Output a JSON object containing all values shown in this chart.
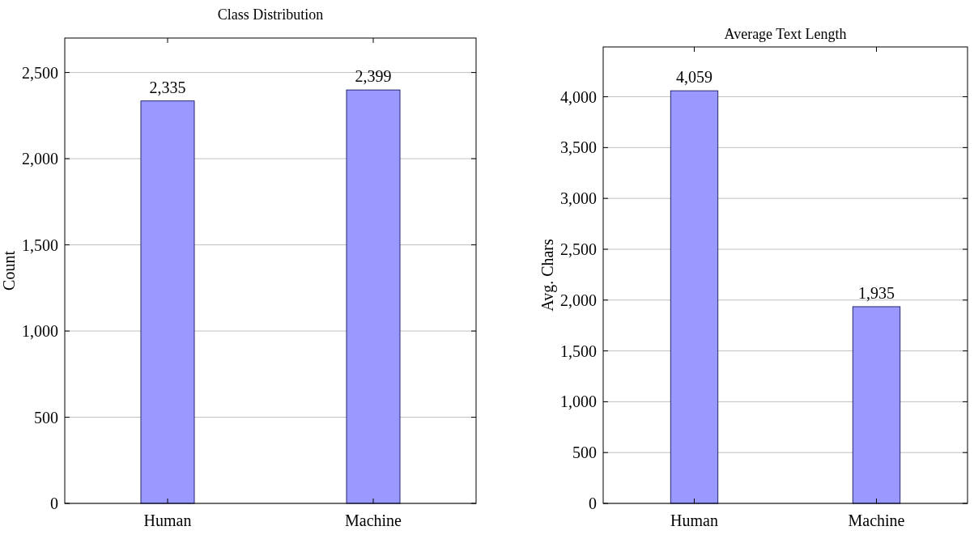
{
  "chart_data": [
    {
      "type": "bar",
      "title": "Class Distribution",
      "ylabel": "Count",
      "categories": [
        "Human",
        "Machine"
      ],
      "values": [
        2335,
        2399
      ],
      "value_labels": [
        "2,335",
        "2,399"
      ],
      "color": "#9999ff",
      "ylim": [
        0,
        2700
      ],
      "yticks": [
        {
          "value": 0,
          "label": "0"
        },
        {
          "value": 500,
          "label": "500"
        },
        {
          "value": 1000,
          "label": "1,000"
        },
        {
          "value": 1500,
          "label": "1,500"
        },
        {
          "value": 2000,
          "label": "2,000"
        },
        {
          "value": 2500,
          "label": "2,500"
        }
      ],
      "grid": "y"
    },
    {
      "type": "bar",
      "title": "Average Text Length",
      "ylabel": "Avg. Chars",
      "categories": [
        "Human",
        "Machine"
      ],
      "values": [
        4059,
        1935
      ],
      "value_labels": [
        "4,059",
        "1,935"
      ],
      "color": "#9999ff",
      "ylim": [
        0,
        4490
      ],
      "yticks": [
        {
          "value": 0,
          "label": "0"
        },
        {
          "value": 500,
          "label": "500"
        },
        {
          "value": 1000,
          "label": "1,000"
        },
        {
          "value": 1500,
          "label": "1,500"
        },
        {
          "value": 2000,
          "label": "2,000"
        },
        {
          "value": 2500,
          "label": "2,500"
        },
        {
          "value": 3000,
          "label": "3,000"
        },
        {
          "value": 3500,
          "label": "3,500"
        },
        {
          "value": 4000,
          "label": "4,000"
        }
      ],
      "grid": "y"
    }
  ]
}
